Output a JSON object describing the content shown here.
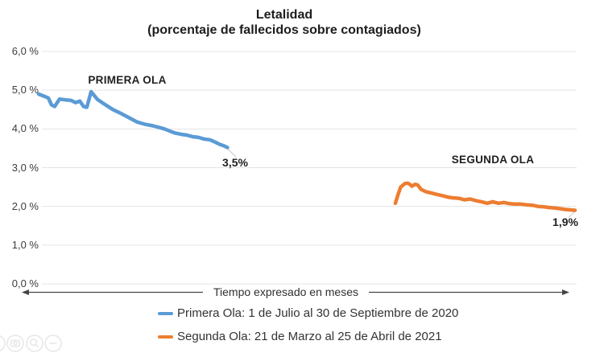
{
  "figure": {
    "title": "Letalidad",
    "subtitle": "(porcentaje de fallecidos sobre contagiados)"
  },
  "chart_data": {
    "type": "line",
    "title": "Letalidad",
    "subtitle": "(porcentaje de fallecidos sobre contagiados)",
    "xlabel": "Tiempo expresado en meses",
    "ylabel": "",
    "ylim": [
      0,
      6
    ],
    "ytick_labels": [
      "6,0 %",
      "5,0 %",
      "4,0 %",
      "3,0 %",
      "2,0 %",
      "1,0 %",
      "0,0 %"
    ],
    "ytick_values": [
      6,
      5,
      4,
      3,
      2,
      1,
      0
    ],
    "grid": true,
    "x_axis_note": "x stored as percent of plot width; x axis has no tick labels, only the arrow caption",
    "series": [
      {
        "name": "Primera Ola",
        "color": "#5B9BD5",
        "annotation": "PRIMERA OLA",
        "end_label": "3,5%",
        "end_value": 3.5,
        "points": [
          [
            -0.6,
            4.9
          ],
          [
            0.5,
            4.84
          ],
          [
            1.2,
            4.8
          ],
          [
            1.8,
            4.62
          ],
          [
            2.4,
            4.58
          ],
          [
            3.3,
            4.77
          ],
          [
            4.4,
            4.75
          ],
          [
            5.4,
            4.74
          ],
          [
            6.3,
            4.68
          ],
          [
            7.1,
            4.72
          ],
          [
            7.8,
            4.58
          ],
          [
            8.4,
            4.56
          ],
          [
            9.2,
            4.96
          ],
          [
            10.4,
            4.76
          ],
          [
            11.8,
            4.63
          ],
          [
            13.3,
            4.5
          ],
          [
            14.8,
            4.4
          ],
          [
            16.3,
            4.29
          ],
          [
            17.8,
            4.18
          ],
          [
            19.3,
            4.12
          ],
          [
            20.8,
            4.08
          ],
          [
            21.9,
            4.04
          ],
          [
            22.9,
            4.0
          ],
          [
            24.0,
            3.94
          ],
          [
            25.0,
            3.89
          ],
          [
            26.1,
            3.86
          ],
          [
            27.1,
            3.84
          ],
          [
            28.2,
            3.8
          ],
          [
            29.3,
            3.78
          ],
          [
            30.3,
            3.74
          ],
          [
            31.4,
            3.72
          ],
          [
            32.4,
            3.66
          ],
          [
            33.3,
            3.6
          ],
          [
            34.1,
            3.56
          ],
          [
            34.7,
            3.52
          ]
        ]
      },
      {
        "name": "Segunda Ola",
        "color": "#ED7D31",
        "annotation": "SEGUNDA OLA",
        "end_label": "1,9%",
        "end_value": 1.9,
        "points": [
          [
            66.1,
            2.08
          ],
          [
            66.6,
            2.3
          ],
          [
            67.1,
            2.5
          ],
          [
            67.9,
            2.59
          ],
          [
            68.4,
            2.6
          ],
          [
            68.8,
            2.57
          ],
          [
            69.2,
            2.52
          ],
          [
            69.8,
            2.57
          ],
          [
            70.3,
            2.55
          ],
          [
            70.9,
            2.44
          ],
          [
            71.8,
            2.38
          ],
          [
            72.7,
            2.35
          ],
          [
            73.8,
            2.31
          ],
          [
            74.8,
            2.28
          ],
          [
            75.9,
            2.24
          ],
          [
            76.9,
            2.22
          ],
          [
            78.0,
            2.21
          ],
          [
            79.0,
            2.17
          ],
          [
            80.1,
            2.19
          ],
          [
            81.1,
            2.15
          ],
          [
            82.2,
            2.12
          ],
          [
            83.3,
            2.08
          ],
          [
            84.3,
            2.12
          ],
          [
            85.4,
            2.08
          ],
          [
            86.4,
            2.1
          ],
          [
            87.5,
            2.07
          ],
          [
            88.5,
            2.06
          ],
          [
            89.6,
            2.06
          ],
          [
            90.6,
            2.04
          ],
          [
            91.7,
            2.03
          ],
          [
            92.8,
            2.0
          ],
          [
            93.8,
            1.99
          ],
          [
            94.9,
            1.97
          ],
          [
            95.9,
            1.96
          ],
          [
            97.0,
            1.94
          ],
          [
            97.9,
            1.92
          ],
          [
            98.8,
            1.91
          ],
          [
            99.7,
            1.9
          ]
        ]
      }
    ],
    "legend": [
      {
        "label": "Primera Ola: 1 de Julio al 30 de Septiembre de 2020",
        "color": "#5B9BD5"
      },
      {
        "label": "Segunda Ola: 21 de Marzo al 25 de Abril de 2021",
        "color": "#ED7D31"
      }
    ],
    "legend_position": "bottom"
  },
  "corner_icons": [
    {
      "name": "camera-icon"
    },
    {
      "name": "zoom-in-icon"
    },
    {
      "name": "zoom-out-icon"
    }
  ],
  "colors": {
    "primera": "#5B9BD5",
    "segunda": "#ED7D31",
    "gridline": "#E4E4E4",
    "axis": "#454545",
    "title_text": "#1D1D1D",
    "tick_text": "#3C3C3C"
  }
}
